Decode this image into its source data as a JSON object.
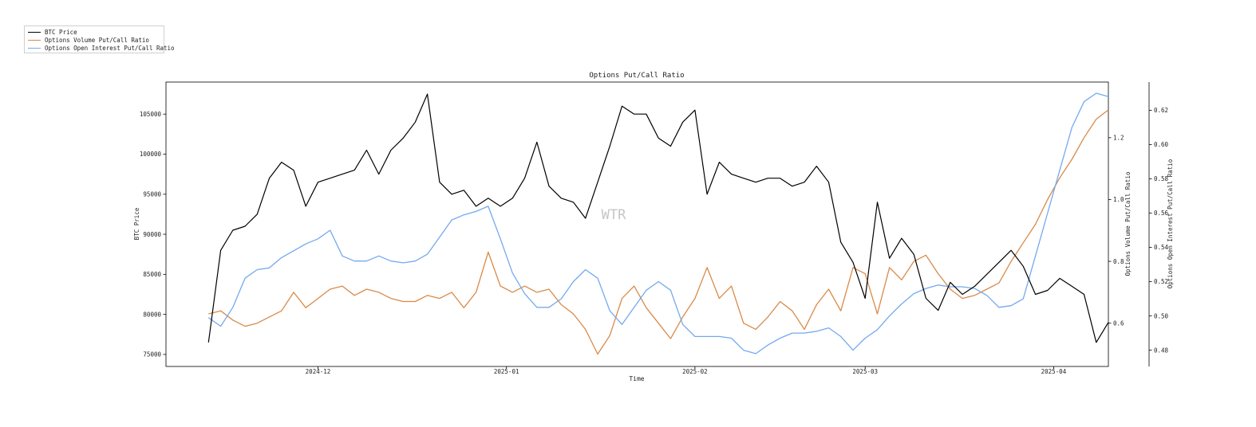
{
  "chart_data": {
    "type": "line",
    "title": "Options Put/Call Ratio",
    "xlabel": "Time",
    "x_ticks": [
      "2024-12",
      "2025-01",
      "2025-02",
      "2025-03",
      "2025-04"
    ],
    "x_range": [
      "2024-11-06",
      "2025-04-10"
    ],
    "watermark": "WTR",
    "legend_position": "upper-left (outside axes)",
    "axes": {
      "left": {
        "label": "BTC Price",
        "ylim": [
          73500,
          109000
        ],
        "ticks": [
          "75000",
          "80000",
          "85000",
          "90000",
          "95000",
          "100000",
          "105000"
        ]
      },
      "right1": {
        "label": "Options Volume Put/Call Ratio",
        "ylim": [
          0.46,
          1.38
        ],
        "ticks": [
          "0.6",
          "0.8",
          "1.0",
          "1.2"
        ]
      },
      "right2": {
        "label": "Options Open Interest Put/Call Ratio",
        "ylim": [
          0.4705,
          0.6365
        ],
        "ticks": [
          "0.48",
          "0.50",
          "0.52",
          "0.54",
          "0.56",
          "0.58",
          "0.60",
          "0.62"
        ]
      }
    },
    "series": [
      {
        "name": "BTC Price",
        "axis": "left",
        "color": "#000000",
        "x": [
          "2024-11-13",
          "2024-11-15",
          "2024-11-17",
          "2024-11-19",
          "2024-11-21",
          "2024-11-23",
          "2024-11-25",
          "2024-11-27",
          "2024-11-29",
          "2024-12-01",
          "2024-12-03",
          "2024-12-05",
          "2024-12-07",
          "2024-12-09",
          "2024-12-11",
          "2024-12-13",
          "2024-12-15",
          "2024-12-17",
          "2024-12-19",
          "2024-12-21",
          "2024-12-23",
          "2024-12-25",
          "2024-12-27",
          "2024-12-29",
          "2024-12-31",
          "2025-01-02",
          "2025-01-04",
          "2025-01-06",
          "2025-01-08",
          "2025-01-10",
          "2025-01-12",
          "2025-01-14",
          "2025-01-16",
          "2025-01-18",
          "2025-01-20",
          "2025-01-22",
          "2025-01-24",
          "2025-01-26",
          "2025-01-28",
          "2025-01-30",
          "2025-02-01",
          "2025-02-03",
          "2025-02-05",
          "2025-02-07",
          "2025-02-09",
          "2025-02-11",
          "2025-02-13",
          "2025-02-15",
          "2025-02-17",
          "2025-02-19",
          "2025-02-21",
          "2025-02-23",
          "2025-02-25",
          "2025-02-27",
          "2025-03-01",
          "2025-03-03",
          "2025-03-05",
          "2025-03-07",
          "2025-03-09",
          "2025-03-11",
          "2025-03-13",
          "2025-03-15",
          "2025-03-17",
          "2025-03-19",
          "2025-03-21",
          "2025-03-23",
          "2025-03-25",
          "2025-03-27",
          "2025-03-29",
          "2025-03-31",
          "2025-04-02",
          "2025-04-04",
          "2025-04-06",
          "2025-04-08",
          "2025-04-10"
        ],
        "values": [
          76500,
          88000,
          90500,
          91000,
          92500,
          97000,
          99000,
          98000,
          93500,
          96500,
          97000,
          97500,
          98000,
          100500,
          97500,
          100500,
          102000,
          104000,
          107500,
          96500,
          95000,
          95500,
          93500,
          94500,
          93500,
          94500,
          97000,
          101500,
          96000,
          94500,
          94000,
          92000,
          96500,
          101000,
          106000,
          105000,
          105000,
          102000,
          101000,
          104000,
          105500,
          95000,
          99000,
          97500,
          97000,
          96500,
          97000,
          97000,
          96000,
          96500,
          98500,
          96500,
          89000,
          86500,
          82000,
          94000,
          87000,
          89500,
          87500,
          82000,
          80500,
          84000,
          82500,
          83500,
          85000,
          86500,
          88000,
          86000,
          82500,
          83000,
          84500,
          83500,
          82500,
          76500,
          79000
        ]
      },
      {
        "name": "Options Volume Put/Call Ratio",
        "axis": "right1",
        "color": "#d98a48",
        "x": [
          "2024-11-13",
          "2024-11-15",
          "2024-11-17",
          "2024-11-19",
          "2024-11-21",
          "2024-11-23",
          "2024-11-25",
          "2024-11-27",
          "2024-11-29",
          "2024-12-01",
          "2024-12-03",
          "2024-12-05",
          "2024-12-07",
          "2024-12-09",
          "2024-12-11",
          "2024-12-13",
          "2024-12-15",
          "2024-12-17",
          "2024-12-19",
          "2024-12-21",
          "2024-12-23",
          "2024-12-25",
          "2024-12-27",
          "2024-12-29",
          "2024-12-31",
          "2025-01-02",
          "2025-01-04",
          "2025-01-06",
          "2025-01-08",
          "2025-01-10",
          "2025-01-12",
          "2025-01-14",
          "2025-01-16",
          "2025-01-18",
          "2025-01-20",
          "2025-01-22",
          "2025-01-24",
          "2025-01-26",
          "2025-01-28",
          "2025-01-30",
          "2025-02-01",
          "2025-02-03",
          "2025-02-05",
          "2025-02-07",
          "2025-02-09",
          "2025-02-11",
          "2025-02-13",
          "2025-02-15",
          "2025-02-17",
          "2025-02-19",
          "2025-02-21",
          "2025-02-23",
          "2025-02-25",
          "2025-02-27",
          "2025-03-01",
          "2025-03-03",
          "2025-03-05",
          "2025-03-07",
          "2025-03-09",
          "2025-03-11",
          "2025-03-13",
          "2025-03-15",
          "2025-03-17",
          "2025-03-19",
          "2025-03-21",
          "2025-03-23",
          "2025-03-25",
          "2025-03-27",
          "2025-03-29",
          "2025-03-31",
          "2025-04-02",
          "2025-04-04",
          "2025-04-06",
          "2025-04-08",
          "2025-04-10"
        ],
        "values": [
          0.63,
          0.64,
          0.61,
          0.59,
          0.6,
          0.62,
          0.64,
          0.7,
          0.65,
          0.68,
          0.71,
          0.72,
          0.69,
          0.71,
          0.7,
          0.68,
          0.67,
          0.67,
          0.69,
          0.68,
          0.7,
          0.65,
          0.7,
          0.83,
          0.72,
          0.7,
          0.72,
          0.7,
          0.71,
          0.66,
          0.63,
          0.58,
          0.5,
          0.56,
          0.68,
          0.72,
          0.65,
          0.6,
          0.55,
          0.62,
          0.68,
          0.78,
          0.68,
          0.72,
          0.6,
          0.58,
          0.62,
          0.67,
          0.64,
          0.58,
          0.66,
          0.71,
          0.64,
          0.78,
          0.76,
          0.63,
          0.78,
          0.74,
          0.8,
          0.82,
          0.76,
          0.71,
          0.68,
          0.69,
          0.71,
          0.73,
          0.8,
          0.86,
          0.92,
          1.0,
          1.07,
          1.13,
          1.2,
          1.26,
          1.29
        ]
      },
      {
        "name": "Options Open Interest Put/Call Ratio",
        "axis": "right2",
        "color": "#74a9ee",
        "x": [
          "2024-11-13",
          "2024-11-15",
          "2024-11-17",
          "2024-11-19",
          "2024-11-21",
          "2024-11-23",
          "2024-11-25",
          "2024-11-27",
          "2024-11-29",
          "2024-12-01",
          "2024-12-03",
          "2024-12-05",
          "2024-12-07",
          "2024-12-09",
          "2024-12-11",
          "2024-12-13",
          "2024-12-15",
          "2024-12-17",
          "2024-12-19",
          "2024-12-21",
          "2024-12-23",
          "2024-12-25",
          "2024-12-27",
          "2024-12-29",
          "2024-12-31",
          "2025-01-02",
          "2025-01-04",
          "2025-01-06",
          "2025-01-08",
          "2025-01-10",
          "2025-01-12",
          "2025-01-14",
          "2025-01-16",
          "2025-01-18",
          "2025-01-20",
          "2025-01-22",
          "2025-01-24",
          "2025-01-26",
          "2025-01-28",
          "2025-01-30",
          "2025-02-01",
          "2025-02-03",
          "2025-02-05",
          "2025-02-07",
          "2025-02-09",
          "2025-02-11",
          "2025-02-13",
          "2025-02-15",
          "2025-02-17",
          "2025-02-19",
          "2025-02-21",
          "2025-02-23",
          "2025-02-25",
          "2025-02-27",
          "2025-03-01",
          "2025-03-03",
          "2025-03-05",
          "2025-03-07",
          "2025-03-09",
          "2025-03-11",
          "2025-03-13",
          "2025-03-15",
          "2025-03-17",
          "2025-03-19",
          "2025-03-21",
          "2025-03-23",
          "2025-03-25",
          "2025-03-27",
          "2025-03-29",
          "2025-03-31",
          "2025-04-02",
          "2025-04-04",
          "2025-04-06",
          "2025-04-08",
          "2025-04-10"
        ],
        "values": [
          0.499,
          0.494,
          0.505,
          0.522,
          0.527,
          0.528,
          0.534,
          0.538,
          0.542,
          0.545,
          0.55,
          0.535,
          0.532,
          0.532,
          0.535,
          0.532,
          0.531,
          0.532,
          0.536,
          0.546,
          0.556,
          0.559,
          0.561,
          0.564,
          0.545,
          0.525,
          0.513,
          0.505,
          0.505,
          0.51,
          0.52,
          0.527,
          0.522,
          0.503,
          0.495,
          0.505,
          0.515,
          0.52,
          0.515,
          0.495,
          0.488,
          0.488,
          0.488,
          0.487,
          0.48,
          0.478,
          0.483,
          0.487,
          0.49,
          0.49,
          0.491,
          0.493,
          0.488,
          0.48,
          0.487,
          0.492,
          0.5,
          0.507,
          0.513,
          0.516,
          0.518,
          0.517,
          0.517,
          0.516,
          0.512,
          0.505,
          0.506,
          0.51,
          0.535,
          0.56,
          0.585,
          0.61,
          0.625,
          0.63,
          0.628
        ]
      }
    ]
  }
}
